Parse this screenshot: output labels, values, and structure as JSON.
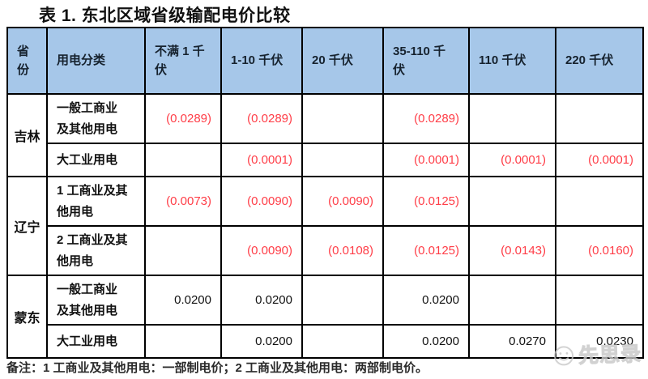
{
  "title": "表 1. 东北区域省级输配电价比较",
  "table": {
    "columns": [
      "省\n份",
      "用电分类",
      "不满 1 千\n伏",
      "1-10 千伏",
      "20 千伏",
      "35-110 千\n伏",
      "110 千伏",
      "220 千伏"
    ],
    "groups": [
      {
        "province": "吉林",
        "rows": [
          {
            "category": "一般工商业\n及其他用电",
            "values": [
              "(0.0289)",
              "(0.0289)",
              "",
              "(0.0289)",
              "",
              ""
            ]
          },
          {
            "category": "大工业用电",
            "values": [
              "",
              "(0.0001)",
              "",
              "(0.0001)",
              "(0.0001)",
              "(0.0001)"
            ]
          }
        ]
      },
      {
        "province": "辽宁",
        "rows": [
          {
            "category": "1 工商业及其\n他用电",
            "values": [
              "(0.0073)",
              "(0.0090)",
              "(0.0090)",
              "(0.0125)",
              "",
              ""
            ]
          },
          {
            "category": "2 工商业及其\n他用电",
            "values": [
              "",
              "(0.0090)",
              "(0.0108)",
              "(0.0125)",
              "(0.0143)",
              "(0.0160)"
            ]
          }
        ]
      },
      {
        "province": "蒙东",
        "rows": [
          {
            "category": "一般工商业\n及其他用电",
            "values": [
              "0.0200",
              "0.0200",
              "",
              "0.0200",
              "",
              ""
            ]
          },
          {
            "category": "大工业用电",
            "values": [
              "",
              "0.0200",
              "",
              "0.0200",
              "0.0270",
              "0.0230"
            ]
          }
        ]
      }
    ]
  },
  "footnote": "备注：1 工商业及其他用电：一部制电价；2 工商业及其他用电：两部制电价。",
  "watermark": {
    "label": "先思录",
    "icon": "smiley-face-icon"
  },
  "colors": {
    "header_bg": "#a6c7e9",
    "negative_value": "#ff3d47",
    "border": "#000000",
    "watermark": "#bdbdbd"
  }
}
